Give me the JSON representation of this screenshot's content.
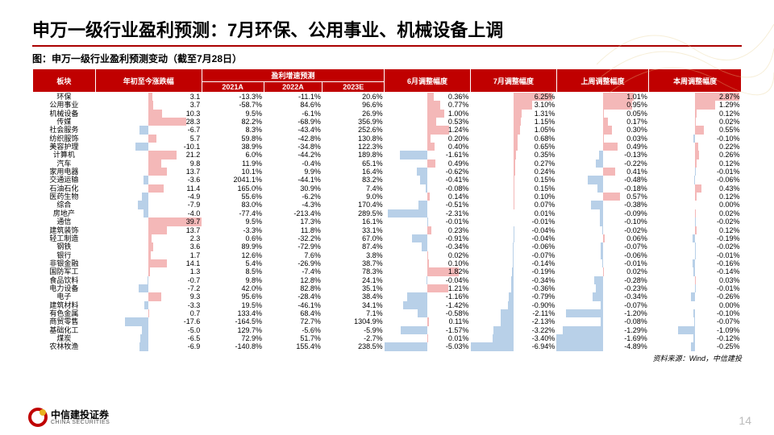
{
  "title": "申万一级行业盈利预测：7月环保、公用事业、机械设备上调",
  "subtitle": "图：申万一级行业盈利预测变动（截至7月28日）",
  "source": "资料来源：Wind，中信建投",
  "page": "14",
  "logo": {
    "cn": "中信建投证券",
    "en": "CHINA SECURITIES"
  },
  "colors": {
    "headerBg": "#c00000",
    "pos": "#f4b8b8",
    "neg": "#b8d0e8",
    "border": "#fff"
  },
  "header": {
    "cat": "板块",
    "ytd": "年初至今涨跌幅",
    "fcGroup": "盈利增速预测",
    "y21": "2021A",
    "y22": "2022A",
    "y23": "2023E",
    "m6": "6月调整幅度",
    "m7": "7月调整幅度",
    "wP": "上周调整幅度",
    "wN": "本周调整幅度"
  },
  "barScale": {
    "ytd": 40,
    "m6": 2.5,
    "m7": 7,
    "wP": 1.5,
    "wN": 3
  },
  "rows": [
    {
      "cat": "环保",
      "ytd": 3.1,
      "y21": "-13.3%",
      "y22": "-11.1%",
      "y23": "20.6%",
      "m6": 0.36,
      "m7": 6.25,
      "wP": 1.01,
      "wN": 2.87
    },
    {
      "cat": "公用事业",
      "ytd": 3.7,
      "y21": "-58.7%",
      "y22": "84.6%",
      "y23": "96.6%",
      "m6": 0.77,
      "m7": 3.1,
      "wP": 0.95,
      "wN": 1.29
    },
    {
      "cat": "机械设备",
      "ytd": 10.3,
      "y21": "9.5%",
      "y22": "-6.1%",
      "y23": "26.9%",
      "m6": 1.0,
      "m7": 1.31,
      "wP": 0.05,
      "wN": 0.12
    },
    {
      "cat": "传媒",
      "ytd": 28.3,
      "y21": "82.2%",
      "y22": "-68.9%",
      "y23": "356.9%",
      "m6": 0.53,
      "m7": 1.15,
      "wP": 0.17,
      "wN": 0.02
    },
    {
      "cat": "社会服务",
      "ytd": -6.7,
      "y21": "8.3%",
      "y22": "-43.4%",
      "y23": "252.6%",
      "m6": 1.24,
      "m7": 1.05,
      "wP": 0.3,
      "wN": 0.55
    },
    {
      "cat": "纺织服饰",
      "ytd": 5.7,
      "y21": "59.8%",
      "y22": "-42.8%",
      "y23": "130.8%",
      "m6": 0.2,
      "m7": 0.68,
      "wP": 0.03,
      "wN": -0.1
    },
    {
      "cat": "美容护理",
      "ytd": -10.1,
      "y21": "38.9%",
      "y22": "-34.8%",
      "y23": "122.3%",
      "m6": 0.4,
      "m7": 0.65,
      "wP": 0.49,
      "wN": 0.22
    },
    {
      "cat": "计算机",
      "ytd": 21.2,
      "y21": "6.0%",
      "y22": "-44.2%",
      "y23": "189.8%",
      "m6": -1.61,
      "m7": 0.35,
      "wP": -0.13,
      "wN": 0.26
    },
    {
      "cat": "汽车",
      "ytd": 9.8,
      "y21": "11.9%",
      "y22": "-0.4%",
      "y23": "65.1%",
      "m6": 0.49,
      "m7": 0.27,
      "wP": -0.22,
      "wN": 0.12
    },
    {
      "cat": "家用电器",
      "ytd": 13.7,
      "y21": "10.1%",
      "y22": "9.9%",
      "y23": "16.4%",
      "m6": -0.62,
      "m7": 0.24,
      "wP": 0.41,
      "wN": -0.01
    },
    {
      "cat": "交通运输",
      "ytd": -3.6,
      "y21": "2041.1%",
      "y22": "-44.1%",
      "y23": "83.2%",
      "m6": -0.41,
      "m7": 0.15,
      "wP": -0.48,
      "wN": -0.06
    },
    {
      "cat": "石油石化",
      "ytd": 11.4,
      "y21": "165.0%",
      "y22": "30.9%",
      "y23": "7.4%",
      "m6": -0.08,
      "m7": 0.15,
      "wP": -0.18,
      "wN": 0.43
    },
    {
      "cat": "医药生物",
      "ytd": -4.9,
      "y21": "55.6%",
      "y22": "-6.2%",
      "y23": "9.0%",
      "m6": 0.14,
      "m7": 0.1,
      "wP": 0.57,
      "wN": 0.12
    },
    {
      "cat": "综合",
      "ytd": -7.9,
      "y21": "83.0%",
      "y22": "-4.3%",
      "y23": "170.4%",
      "m6": -0.51,
      "m7": 0.07,
      "wP": -0.38,
      "wN": 0.0
    },
    {
      "cat": "房地产",
      "ytd": -4.0,
      "y21": "-77.4%",
      "y22": "-213.4%",
      "y23": "289.5%",
      "m6": -2.31,
      "m7": 0.01,
      "wP": -0.09,
      "wN": 0.02
    },
    {
      "cat": "通信",
      "ytd": 39.7,
      "y21": "9.5%",
      "y22": "17.3%",
      "y23": "16.1%",
      "m6": -0.01,
      "m7": -0.01,
      "wP": -0.1,
      "wN": -0.02
    },
    {
      "cat": "建筑装饰",
      "ytd": 13.7,
      "y21": "-3.3%",
      "y22": "11.8%",
      "y23": "33.1%",
      "m6": 0.23,
      "m7": -0.04,
      "wP": -0.02,
      "wN": 0.12
    },
    {
      "cat": "轻工制造",
      "ytd": 2.3,
      "y21": "0.6%",
      "y22": "-32.2%",
      "y23": "67.0%",
      "m6": -0.91,
      "m7": -0.04,
      "wP": 0.06,
      "wN": -0.19
    },
    {
      "cat": "钢铁",
      "ytd": 3.6,
      "y21": "89.9%",
      "y22": "-72.9%",
      "y23": "87.4%",
      "m6": -0.34,
      "m7": -0.06,
      "wP": -0.07,
      "wN": -0.02
    },
    {
      "cat": "银行",
      "ytd": 1.7,
      "y21": "12.6%",
      "y22": "7.6%",
      "y23": "3.8%",
      "m6": 0.02,
      "m7": -0.07,
      "wP": -0.06,
      "wN": -0.01
    },
    {
      "cat": "非银金融",
      "ytd": 14.1,
      "y21": "5.4%",
      "y22": "-26.9%",
      "y23": "38.7%",
      "m6": 0.1,
      "m7": -0.14,
      "wP": -0.01,
      "wN": -0.16
    },
    {
      "cat": "国防军工",
      "ytd": 1.3,
      "y21": "8.5%",
      "y22": "-7.4%",
      "y23": "78.3%",
      "m6": 1.82,
      "m7": -0.19,
      "wP": 0.02,
      "wN": -0.14
    },
    {
      "cat": "食品饮料",
      "ytd": -0.7,
      "y21": "9.8%",
      "y22": "12.8%",
      "y23": "24.1%",
      "m6": -0.04,
      "m7": -0.34,
      "wP": -0.28,
      "wN": 0.03
    },
    {
      "cat": "电力设备",
      "ytd": -7.2,
      "y21": "42.0%",
      "y22": "82.8%",
      "y23": "35.1%",
      "m6": 1.21,
      "m7": -0.36,
      "wP": -0.23,
      "wN": -0.01
    },
    {
      "cat": "电子",
      "ytd": 9.3,
      "y21": "95.6%",
      "y22": "-28.4%",
      "y23": "38.4%",
      "m6": -1.16,
      "m7": -0.79,
      "wP": -0.34,
      "wN": -0.26
    },
    {
      "cat": "建筑材料",
      "ytd": -3.3,
      "y21": "19.5%",
      "y22": "-46.1%",
      "y23": "34.1%",
      "m6": -1.42,
      "m7": -0.9,
      "wP": -0.07,
      "wN": 0.0
    },
    {
      "cat": "有色金属",
      "ytd": 0.7,
      "y21": "133.4%",
      "y22": "68.4%",
      "y23": "7.1%",
      "m6": -0.58,
      "m7": -2.11,
      "wP": -1.2,
      "wN": -0.1
    },
    {
      "cat": "商贸零售",
      "ytd": -17.6,
      "y21": "-164.5%",
      "y22": "72.7%",
      "y23": "1304.9%",
      "m6": 0.11,
      "m7": -2.13,
      "wP": -0.08,
      "wN": -0.07
    },
    {
      "cat": "基础化工",
      "ytd": -5.0,
      "y21": "129.7%",
      "y22": "-5.6%",
      "y23": "-5.9%",
      "m6": -1.57,
      "m7": -3.22,
      "wP": -1.29,
      "wN": -1.09
    },
    {
      "cat": "煤炭",
      "ytd": -6.5,
      "y21": "72.9%",
      "y22": "51.7%",
      "y23": "-2.7%",
      "m6": 0.01,
      "m7": -3.4,
      "wP": -1.69,
      "wN": -0.12
    },
    {
      "cat": "农林牧渔",
      "ytd": -6.9,
      "y21": "-140.8%",
      "y22": "155.4%",
      "y23": "238.5%",
      "m6": -5.03,
      "m7": -6.94,
      "wP": -4.89,
      "wN": -0.25
    }
  ]
}
